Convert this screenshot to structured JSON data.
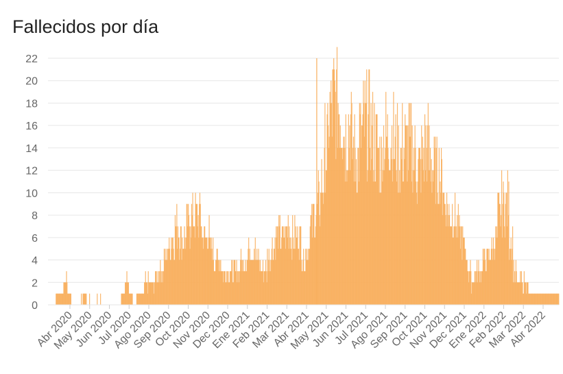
{
  "chart_data": {
    "type": "bar",
    "title": "Fallecidos por día",
    "xlabel": "",
    "ylabel": "",
    "ylim": [
      0,
      22
    ],
    "yticks": [
      0,
      2,
      4,
      6,
      8,
      10,
      12,
      14,
      16,
      18,
      20,
      22
    ],
    "grid": true,
    "bar_color": "#f8ae5c",
    "x_ticks": [
      "Abr 2020",
      "May 2020",
      "Jun 2020",
      "Jul 2020",
      "Ago 2020",
      "Sep 2020",
      "Oct 2020",
      "Nov 2020",
      "Dec 2020",
      "Ene 2021",
      "Feb 2021",
      "Mar 2021",
      "Abr 2021",
      "May 2021",
      "Jun 2021",
      "Jul 2021",
      "Ago 2021",
      "Sep 2021",
      "Oct 2021",
      "Nov 2021",
      "Dec 2021",
      "Ene 2022",
      "Feb 2022",
      "Mar 2022",
      "Abr 2022"
    ],
    "x_start": "2020-03-15",
    "series": [
      {
        "values_weekly_avg": [
          0,
          0,
          1,
          1,
          2,
          1,
          0,
          0,
          0,
          1,
          0,
          0,
          0,
          0,
          0,
          0,
          0,
          0,
          0,
          1,
          2,
          1,
          0,
          1,
          1,
          2,
          2,
          2,
          3,
          3,
          4,
          5,
          6,
          7,
          6,
          6,
          7,
          8,
          8,
          8,
          6,
          6,
          5,
          4,
          4,
          3,
          3,
          3,
          3,
          3,
          4,
          4,
          5,
          5,
          4,
          3,
          3,
          4,
          5,
          6,
          6,
          6,
          7,
          6,
          6,
          6,
          4,
          5,
          7,
          8,
          9,
          11,
          14,
          17,
          18,
          18,
          17,
          15,
          16,
          14,
          13,
          15,
          16,
          16,
          15,
          14,
          13,
          15,
          15,
          15,
          14,
          13,
          14,
          14,
          14,
          13,
          12,
          13,
          14,
          13,
          12,
          12,
          11,
          9,
          8,
          8,
          7,
          6,
          5,
          3,
          2,
          3,
          3,
          4,
          4,
          5,
          6,
          8,
          9,
          9,
          6,
          3,
          2,
          2,
          2,
          1,
          1,
          1,
          1,
          1,
          1,
          1,
          1
        ],
        "peak": 22
      }
    ]
  }
}
